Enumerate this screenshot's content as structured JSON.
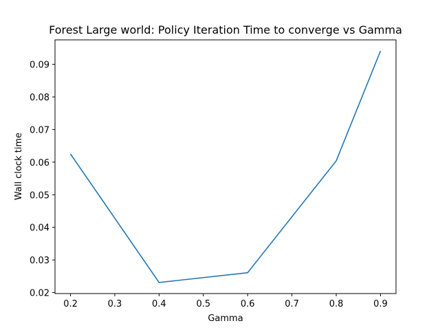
{
  "chart_data": {
    "type": "line",
    "title": "Forest Large world: Policy Iteration Time to converge vs Gamma",
    "xlabel": "Gamma",
    "ylabel": "Wall clock time",
    "xlim": [
      0.165,
      0.935
    ],
    "ylim": [
      0.0197,
      0.0975
    ],
    "xticks": [
      0.2,
      0.3,
      0.4,
      0.5,
      0.6,
      0.7,
      0.8,
      0.9
    ],
    "xtick_labels": [
      "0.2",
      "0.3",
      "0.4",
      "0.5",
      "0.6",
      "0.7",
      "0.8",
      "0.9"
    ],
    "yticks": [
      0.02,
      0.03,
      0.04,
      0.05,
      0.06,
      0.07,
      0.08,
      0.09
    ],
    "ytick_labels": [
      "0.02",
      "0.03",
      "0.04",
      "0.05",
      "0.06",
      "0.07",
      "0.08",
      "0.09"
    ],
    "grid": false,
    "series": [
      {
        "x": [
          0.2,
          0.4,
          0.6,
          0.8,
          0.9
        ],
        "values": [
          0.0625,
          0.0231,
          0.0261,
          0.0604,
          0.0941
        ],
        "color": "#1f77b4"
      }
    ]
  }
}
